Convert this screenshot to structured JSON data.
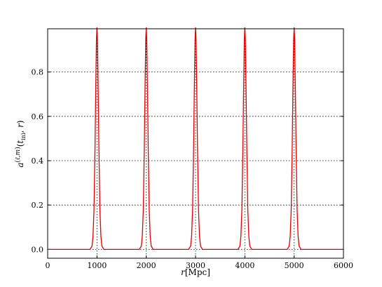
{
  "chart_data": {
    "type": "line",
    "title": "",
    "xlabel": "r[Mpc]",
    "ylabel": "a^(ℓ,m)(t_ini, r)",
    "xlim": [
      0,
      6000
    ],
    "ylim": [
      -0.04,
      0.995
    ],
    "xticks": [
      "0",
      "1000",
      "2000",
      "3000",
      "4000",
      "5000",
      "6000"
    ],
    "xtick_values": [
      0,
      1000,
      2000,
      3000,
      4000,
      5000,
      6000
    ],
    "yticks": [
      "0.0",
      "0.2",
      "0.4",
      "0.6",
      "0.8"
    ],
    "ytick_values": [
      0.0,
      0.2,
      0.4,
      0.6,
      0.8
    ],
    "grid": true,
    "series": [
      {
        "color": "#e00000",
        "peak_centers": [
          1000,
          2000,
          3000,
          4000,
          5000
        ],
        "peak_height": 1.0,
        "points": [
          [
            0,
            0
          ],
          [
            860,
            0
          ],
          [
            900,
            0.015
          ],
          [
            920,
            0.06
          ],
          [
            940,
            0.18
          ],
          [
            960,
            0.45
          ],
          [
            975,
            0.72
          ],
          [
            990,
            0.95
          ],
          [
            1000,
            1.0
          ],
          [
            1010,
            0.95
          ],
          [
            1025,
            0.72
          ],
          [
            1040,
            0.45
          ],
          [
            1060,
            0.18
          ],
          [
            1080,
            0.06
          ],
          [
            1100,
            0.015
          ],
          [
            1140,
            0
          ],
          [
            1860,
            0
          ],
          [
            1900,
            0.015
          ],
          [
            1920,
            0.06
          ],
          [
            1940,
            0.18
          ],
          [
            1960,
            0.45
          ],
          [
            1975,
            0.72
          ],
          [
            1990,
            0.95
          ],
          [
            2000,
            1.0
          ],
          [
            2010,
            0.95
          ],
          [
            2025,
            0.72
          ],
          [
            2040,
            0.45
          ],
          [
            2060,
            0.18
          ],
          [
            2080,
            0.06
          ],
          [
            2100,
            0.015
          ],
          [
            2140,
            0
          ],
          [
            2860,
            0
          ],
          [
            2900,
            0.015
          ],
          [
            2920,
            0.06
          ],
          [
            2940,
            0.18
          ],
          [
            2960,
            0.45
          ],
          [
            2975,
            0.72
          ],
          [
            2990,
            0.95
          ],
          [
            3000,
            1.0
          ],
          [
            3010,
            0.95
          ],
          [
            3025,
            0.72
          ],
          [
            3040,
            0.45
          ],
          [
            3060,
            0.18
          ],
          [
            3080,
            0.06
          ],
          [
            3100,
            0.015
          ],
          [
            3140,
            0
          ],
          [
            3860,
            0
          ],
          [
            3900,
            0.015
          ],
          [
            3920,
            0.06
          ],
          [
            3940,
            0.18
          ],
          [
            3960,
            0.45
          ],
          [
            3975,
            0.72
          ],
          [
            3990,
            0.95
          ],
          [
            4000,
            1.0
          ],
          [
            4010,
            0.95
          ],
          [
            4025,
            0.72
          ],
          [
            4040,
            0.45
          ],
          [
            4060,
            0.18
          ],
          [
            4080,
            0.06
          ],
          [
            4100,
            0.015
          ],
          [
            4140,
            0
          ],
          [
            4860,
            0
          ],
          [
            4900,
            0.015
          ],
          [
            4920,
            0.06
          ],
          [
            4940,
            0.18
          ],
          [
            4960,
            0.45
          ],
          [
            4975,
            0.72
          ],
          [
            4990,
            0.95
          ],
          [
            5000,
            1.0
          ],
          [
            5010,
            0.95
          ],
          [
            5025,
            0.72
          ],
          [
            5040,
            0.45
          ],
          [
            5060,
            0.18
          ],
          [
            5080,
            0.06
          ],
          [
            5100,
            0.015
          ],
          [
            5140,
            0
          ],
          [
            6000,
            0
          ]
        ]
      }
    ]
  }
}
